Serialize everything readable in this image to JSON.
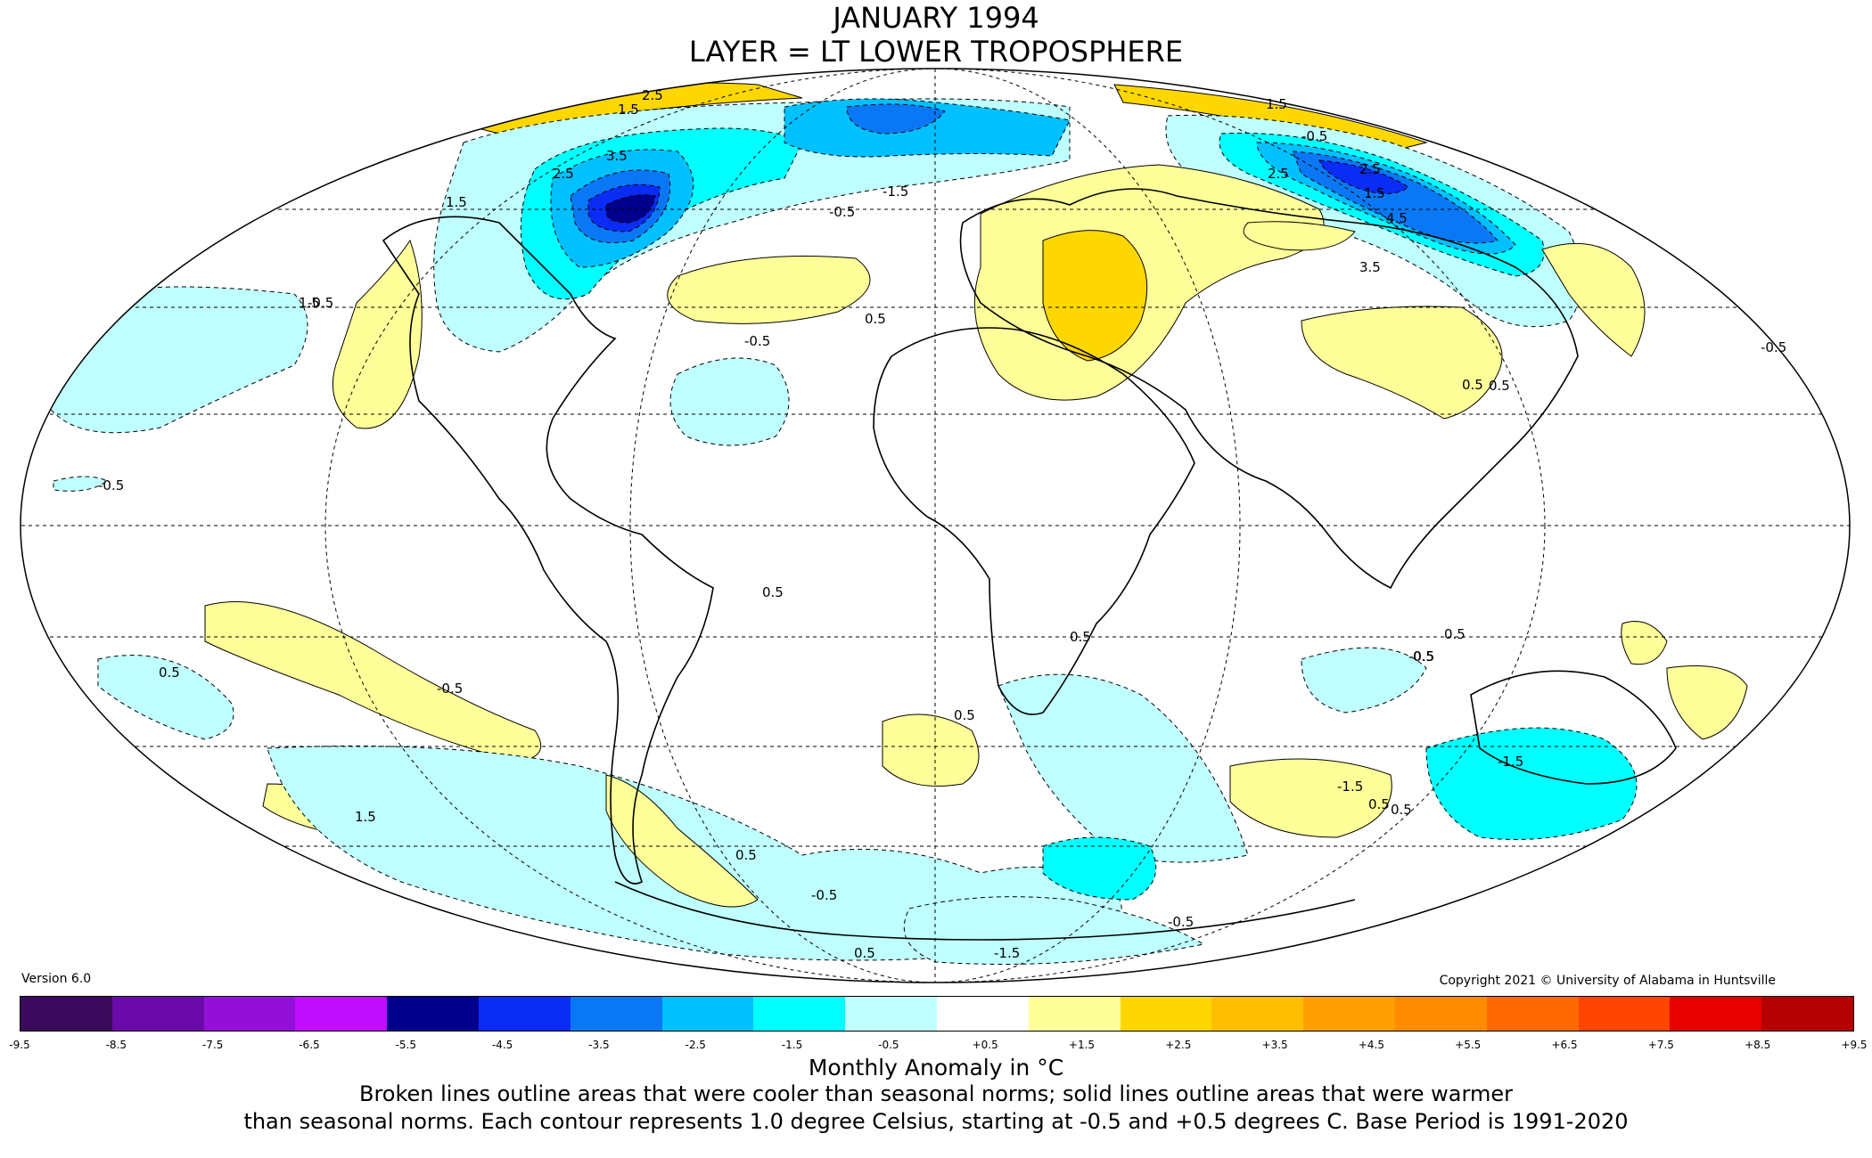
{
  "title": "JANUARY 1994",
  "subtitle": "LAYER = LT LOWER TROPOSPHERE",
  "version": "Version 6.0",
  "copyright": "Copyright 2021 © University of Alabama in Huntsville",
  "colorbar": {
    "ticks": [
      "-9.5",
      "-8.5",
      "-7.5",
      "-6.5",
      "-5.5",
      "-4.5",
      "-3.5",
      "-2.5",
      "-1.5",
      "-0.5",
      "+0.5",
      "+1.5",
      "+2.5",
      "+3.5",
      "+4.5",
      "+5.5",
      "+6.5",
      "+7.5",
      "+8.5",
      "+9.5"
    ],
    "colors": [
      "#3b0a5c",
      "#6a0aa8",
      "#9410d8",
      "#c00cff",
      "#00008c",
      "#0a2cf5",
      "#0a78f5",
      "#00c0ff",
      "#00ffff",
      "#bfffff",
      "#ffffff",
      "#ffff99",
      "#ffd700",
      "#ffbe00",
      "#ffa000",
      "#ff8c00",
      "#ff6a00",
      "#ff4500",
      "#e60000",
      "#b40000"
    ]
  },
  "unit_label": "Monthly Anomaly in °C",
  "note_line1": "Broken lines outline areas that were cooler than seasonal norms; solid lines outline areas that were warmer",
  "note_line2": "than seasonal norms. Each contour represents 1.0 degree Celsius, starting at -0.5 and +0.5 degrees C. Base Period is 1991-2020",
  "contour_labels": [
    "2.5",
    "1.5",
    "3.5",
    "2.5",
    "1.5",
    "-1.5",
    "-0.5",
    "1.5",
    "-0.5",
    "0.5",
    "-0.5",
    "-0.5",
    "2.5",
    "1.5",
    "2.5",
    "4.5",
    "3.5",
    "1.5",
    "-0.5",
    "0.5",
    "0.5",
    "-0.5",
    "0.5",
    "0.5",
    "0.5",
    "-0.5",
    "0.5",
    "-0.5",
    "0.5",
    "1.5",
    "0.5",
    "-1.5",
    "0.5",
    "-1.5",
    "0.5",
    "-0.5",
    "0.5",
    "-1.5",
    "0.5",
    "-0.5"
  ]
}
